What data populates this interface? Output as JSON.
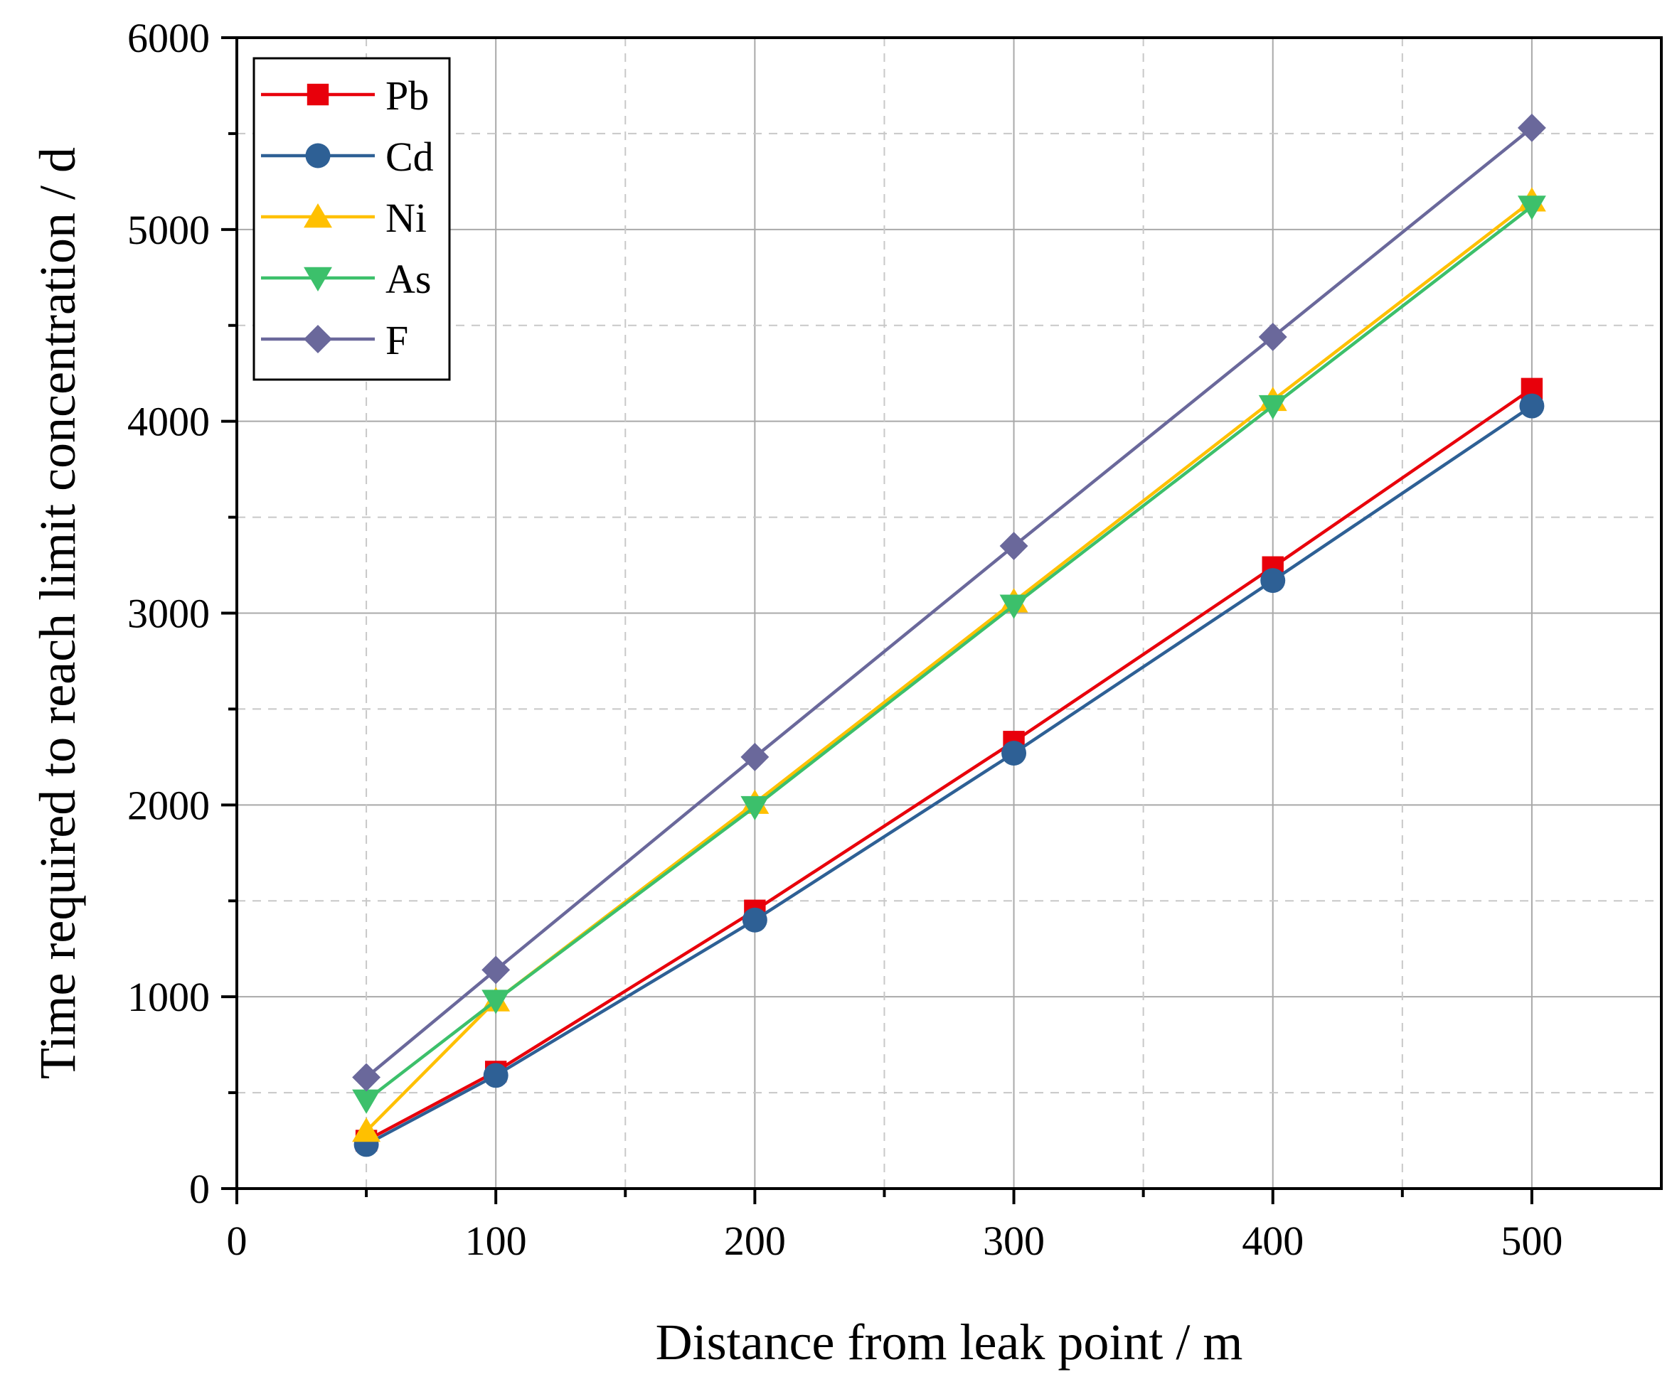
{
  "chart_data": {
    "type": "line",
    "xlabel": "Distance from leak point / m",
    "ylabel": "Time required to reach limit concentration / d",
    "xlim": [
      0,
      550
    ],
    "ylim": [
      0,
      6000
    ],
    "x_ticks": [
      0,
      100,
      200,
      300,
      400,
      500
    ],
    "x_tick_labels": [
      "0",
      "100",
      "200",
      "300",
      "400",
      "500"
    ],
    "y_ticks": [
      0,
      1000,
      2000,
      3000,
      4000,
      5000,
      6000
    ],
    "y_tick_labels": [
      "0",
      "1000",
      "2000",
      "3000",
      "4000",
      "5000",
      "6000"
    ],
    "grid": true,
    "legend_position": "top-left",
    "x": [
      50,
      100,
      200,
      300,
      400,
      500
    ],
    "series": [
      {
        "name": "Pb",
        "color": "#e8000b",
        "marker": "square",
        "values": [
          250,
          610,
          1450,
          2330,
          3240,
          4170
        ]
      },
      {
        "name": "Cd",
        "color": "#2e6095",
        "marker": "circle",
        "values": [
          230,
          590,
          1400,
          2270,
          3170,
          4080
        ]
      },
      {
        "name": "Ni",
        "color": "#ffc000",
        "marker": "triangle-up",
        "values": [
          300,
          980,
          2010,
          3060,
          4110,
          5150
        ]
      },
      {
        "name": "As",
        "color": "#3cc06b",
        "marker": "triangle-down",
        "values": [
          460,
          980,
          1990,
          3040,
          4080,
          5120
        ]
      },
      {
        "name": "F",
        "color": "#6a689b",
        "marker": "diamond",
        "values": [
          580,
          1140,
          2250,
          3350,
          4440,
          5530
        ]
      }
    ]
  }
}
